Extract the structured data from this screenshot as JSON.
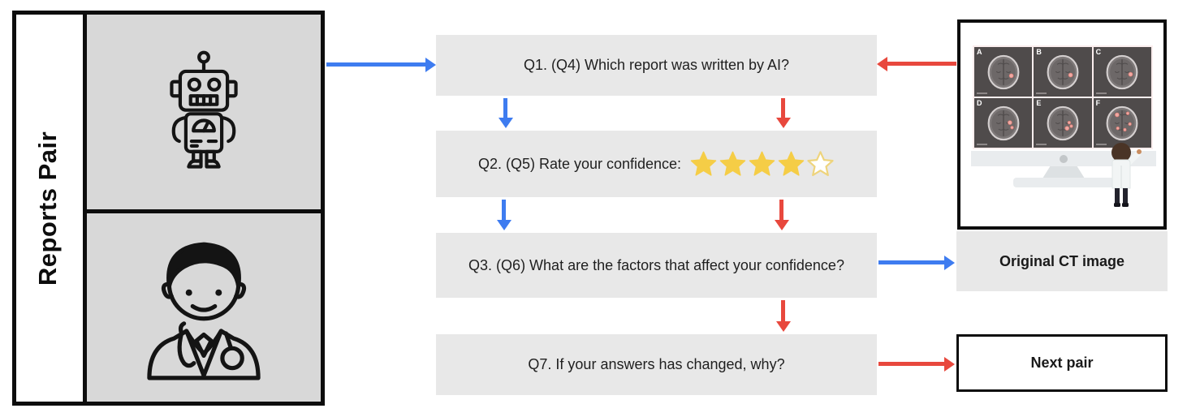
{
  "colors": {
    "blue": "#3e7cf0",
    "red": "#e8483d",
    "question_box": "#e8e8e8",
    "panel_gray": "#d8d8d8",
    "ink": "#0d0d0d",
    "star": "#f5cd46",
    "star_empty_border": "#eed47d"
  },
  "left_panel": {
    "title": "Reports Pair",
    "items": [
      {
        "icon": "robot-icon"
      },
      {
        "icon": "doctor-icon"
      }
    ]
  },
  "questions": [
    {
      "id": "q1",
      "text": "Q1. (Q4) Which report was written by AI?"
    },
    {
      "id": "q2",
      "text": "Q2. (Q5) Rate your confidence:",
      "rating": {
        "filled": 4,
        "total": 5
      }
    },
    {
      "id": "q3",
      "text": "Q3. (Q6) What are the factors that affect your confidence?"
    },
    {
      "id": "q7",
      "text": "Q7. If your answers has changed, why?"
    }
  ],
  "right_panel": {
    "monitor": {
      "panel_labels": [
        "A",
        "B",
        "C",
        "D",
        "E",
        "F"
      ]
    },
    "original_ct_label": "Original CT image",
    "next_pair_label": "Next pair"
  }
}
